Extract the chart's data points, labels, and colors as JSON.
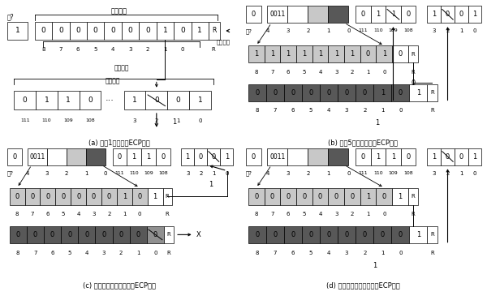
{
  "background": "#ffffff",
  "subfig_labels": [
    "(a) 纠正1位错误的ECP方案",
    "(b) 纠正5个故障单元的ECP方案",
    "(c) 替代单元发生故障时的ECP方案",
    "(d) 修正指针发生故障时的ECP方案"
  ],
  "color_white": "#ffffff",
  "color_light_gray": "#c8c8c8",
  "color_mid_gray": "#909090",
  "color_dark_gray": "#585858",
  "color_black": "#000000"
}
